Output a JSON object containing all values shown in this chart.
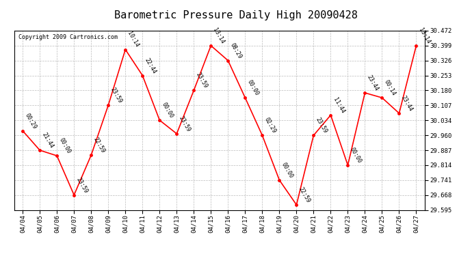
{
  "title": "Barometric Pressure Daily High 20090428",
  "copyright": "Copyright 2009 Cartronics.com",
  "dates": [
    "04/04",
    "04/05",
    "04/06",
    "04/07",
    "04/08",
    "04/09",
    "04/10",
    "04/11",
    "04/12",
    "04/13",
    "04/14",
    "04/15",
    "04/16",
    "04/17",
    "04/18",
    "04/19",
    "04/20",
    "04/21",
    "04/22",
    "04/23",
    "04/24",
    "04/25",
    "04/26",
    "04/27"
  ],
  "values": [
    29.982,
    29.887,
    29.86,
    29.668,
    29.863,
    30.107,
    30.38,
    30.253,
    30.034,
    29.968,
    30.18,
    30.399,
    30.326,
    30.144,
    29.96,
    29.741,
    29.62,
    29.96,
    30.059,
    29.814,
    30.168,
    30.144,
    30.068,
    30.399
  ],
  "times": [
    "00:29",
    "21:44",
    "00:00",
    "23:59",
    "22:59",
    "23:59",
    "10:14",
    "22:44",
    "00:00",
    "23:59",
    "23:59",
    "13:14",
    "08:29",
    "00:00",
    "02:29",
    "00:00",
    "22:59",
    "23:59",
    "11:44",
    "00:00",
    "23:44",
    "00:14",
    "23:44",
    "13:14"
  ],
  "ylim_min": 29.595,
  "ylim_max": 30.472,
  "yticks": [
    29.595,
    29.668,
    29.741,
    29.814,
    29.887,
    29.96,
    30.034,
    30.107,
    30.18,
    30.253,
    30.326,
    30.399,
    30.472
  ],
  "line_color": "red",
  "marker_color": "red",
  "bg_color": "white",
  "grid_color": "#bbbbbb",
  "title_fontsize": 11,
  "tick_fontsize": 6.5,
  "annotation_fontsize": 6,
  "copyright_fontsize": 6
}
